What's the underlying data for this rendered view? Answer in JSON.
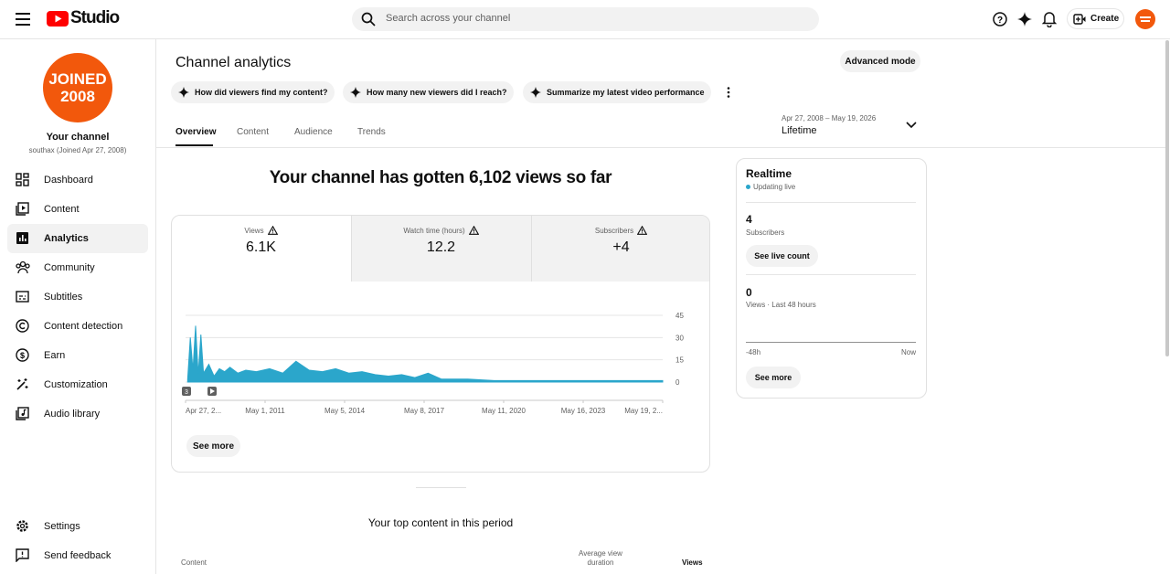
{
  "header": {
    "logo": "Studio",
    "search_placeholder": "Search across your channel",
    "create": "Create"
  },
  "sidebar": {
    "avatar_lines": [
      "JOINED",
      "2008"
    ],
    "channel_title": "Your channel",
    "channel_subtitle": "southax (Joined Apr 27, 2008)",
    "nav": [
      "Dashboard",
      "Content",
      "Analytics",
      "Community",
      "Subtitles",
      "Content detection",
      "Earn",
      "Customization",
      "Audio library"
    ],
    "footer_nav": [
      "Settings",
      "Send feedback"
    ]
  },
  "main": {
    "title": "Channel analytics",
    "advanced_mode": "Advanced mode",
    "prompts": [
      "How did viewers find my content?",
      "How many new viewers did I reach?",
      "Summarize my latest video performance"
    ],
    "tabs": [
      "Overview",
      "Content",
      "Audience",
      "Trends"
    ],
    "date_range": "Apr 27, 2008 – May 19, 2026",
    "period": "Lifetime",
    "headline": "Your channel has gotten 6,102 views so far",
    "metrics": [
      {
        "label": "Views",
        "value": "6.1K"
      },
      {
        "label": "Watch time (hours)",
        "value": "12.2"
      },
      {
        "label": "Subscribers",
        "value": "+4"
      }
    ],
    "chart_data": {
      "type": "area",
      "color": "#2ba6cb",
      "marker_label": "3",
      "x": [
        2008.4,
        2008.5,
        2008.6,
        2008.7,
        2008.8,
        2008.9,
        2009.0,
        2009.2,
        2009.4,
        2009.6,
        2009.8,
        2010.0,
        2010.3,
        2010.6,
        2011.0,
        2011.5,
        2012.0,
        2012.5,
        2013.0,
        2013.5,
        2014.0,
        2014.5,
        2015.0,
        2015.5,
        2016.0,
        2016.5,
        2017.0,
        2017.5,
        2018.0,
        2019.0,
        2020.0,
        2021.0,
        2022.0,
        2023.0,
        2024.0,
        2025.0,
        2026.0,
        2026.38
      ],
      "values": [
        2,
        30,
        8,
        38,
        5,
        32,
        6,
        12,
        4,
        9,
        7,
        10,
        6,
        8,
        7,
        9,
        6,
        14,
        8,
        7,
        9,
        6,
        7,
        5,
        4,
        5,
        3,
        6,
        2,
        2,
        1,
        1,
        1,
        1,
        1,
        1,
        1,
        1
      ],
      "xlim": [
        2008.32,
        2026.38
      ],
      "xticks": [
        {
          "value": 2008.32,
          "label": "Apr 27, 2..."
        },
        {
          "value": 2011.33,
          "label": "May 1, 2011"
        },
        {
          "value": 2014.34,
          "label": "May 5, 2014"
        },
        {
          "value": 2017.35,
          "label": "May 8, 2017"
        },
        {
          "value": 2020.36,
          "label": "May 11, 2020"
        },
        {
          "value": 2023.37,
          "label": "May 16, 2023"
        },
        {
          "value": 2026.38,
          "label": "May 19, 2..."
        }
      ],
      "ylim": [
        0,
        45
      ],
      "yticks": [
        0,
        15,
        30,
        45
      ],
      "grid": true
    },
    "see_more": "See more",
    "top_content_title": "Your top content in this period",
    "table_headers": {
      "content": "Content",
      "avg_duration": [
        "Average view",
        "duration"
      ],
      "views": "Views"
    }
  },
  "realtime": {
    "title": "Realtime",
    "status": "Updating live",
    "subscribers_value": "4",
    "subscribers_label": "Subscribers",
    "see_live_count": "See live count",
    "views_value": "0",
    "views_label": "Views · Last 48 hours",
    "axis_start": "-48h",
    "axis_end": "Now",
    "see_more": "See more"
  }
}
